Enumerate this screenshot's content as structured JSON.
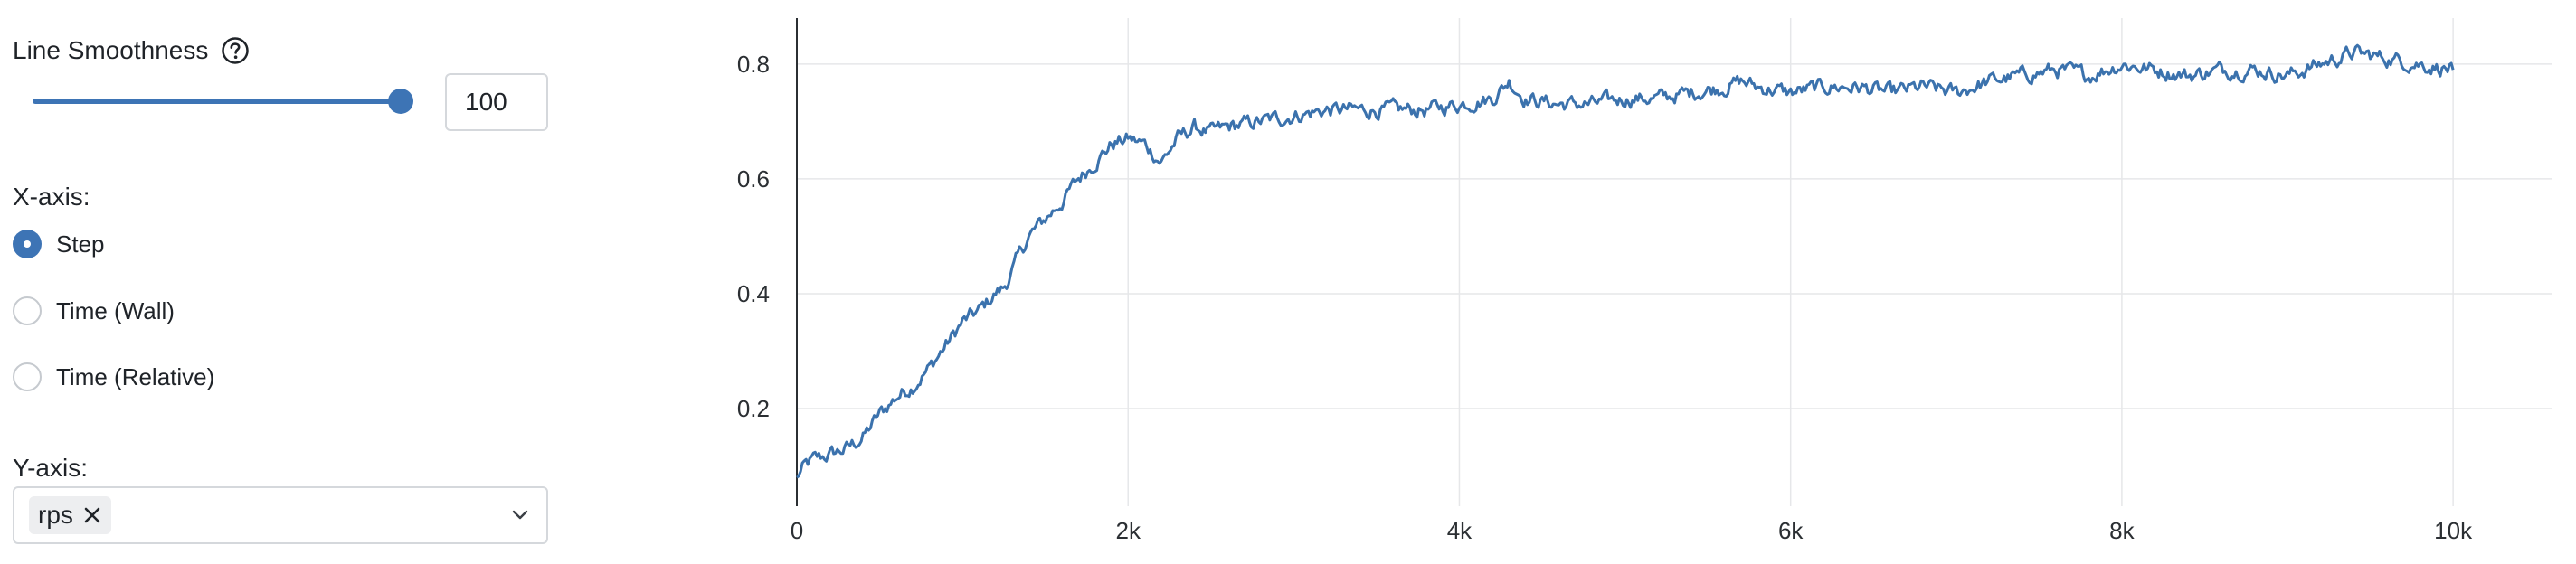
{
  "controls": {
    "smoothing": {
      "label": "Line Smoothness",
      "help_icon": "question-circle-icon",
      "value": "100",
      "slider_fraction": 1.0
    },
    "x_axis": {
      "label": "X-axis:",
      "options": [
        {
          "label": "Step",
          "selected": true
        },
        {
          "label": "Time (Wall)",
          "selected": false
        },
        {
          "label": "Time (Relative)",
          "selected": false
        }
      ]
    },
    "y_axis": {
      "label": "Y-axis:",
      "selected_chip": "rps",
      "remove_icon": "close-icon",
      "dropdown_icon": "chevron-down-icon"
    }
  },
  "colors": {
    "accent": "#3d74b5",
    "line": "#3b72ad",
    "grid": "#e6e7e9"
  },
  "chart_data": {
    "type": "line",
    "title": "",
    "xlabel": "",
    "ylabel": "",
    "xlim": [
      0,
      10600
    ],
    "ylim": [
      0.03,
      0.88
    ],
    "grid": true,
    "x_ticks": [
      0,
      2000,
      4000,
      6000,
      8000,
      10000
    ],
    "x_tick_labels": [
      "0",
      "2k",
      "4k",
      "6k",
      "8k",
      "10k"
    ],
    "y_ticks": [
      0.2,
      0.4,
      0.6,
      0.8
    ],
    "y_tick_labels": [
      "0.2",
      "0.4",
      "0.6",
      "0.8"
    ],
    "series": [
      {
        "x": [
          0,
          50,
          100,
          200,
          300,
          400,
          500,
          600,
          700,
          800,
          900,
          1000,
          1100,
          1200,
          1250,
          1300,
          1400,
          1500,
          1600,
          1700,
          1800,
          1900,
          2000,
          2100,
          2200,
          2300,
          2400,
          2500,
          2600,
          2800,
          3000,
          3200,
          3400,
          3600,
          3800,
          4000,
          4200,
          4300,
          4400,
          4600,
          4800,
          5000,
          5200,
          5400,
          5600,
          5700,
          5800,
          6000,
          6200,
          6400,
          6600,
          6800,
          7000,
          7200,
          7400,
          7600,
          7800,
          8000,
          8200,
          8400,
          8600,
          8800,
          9000,
          9200,
          9400,
          9600,
          9800,
          10000
        ],
        "values": [
          0.08,
          0.1,
          0.11,
          0.12,
          0.13,
          0.15,
          0.19,
          0.22,
          0.24,
          0.27,
          0.31,
          0.35,
          0.37,
          0.4,
          0.41,
          0.44,
          0.5,
          0.53,
          0.56,
          0.6,
          0.63,
          0.66,
          0.67,
          0.66,
          0.63,
          0.67,
          0.69,
          0.68,
          0.69,
          0.7,
          0.71,
          0.72,
          0.72,
          0.72,
          0.72,
          0.73,
          0.74,
          0.77,
          0.74,
          0.73,
          0.73,
          0.74,
          0.74,
          0.75,
          0.76,
          0.77,
          0.76,
          0.75,
          0.76,
          0.76,
          0.75,
          0.76,
          0.75,
          0.77,
          0.78,
          0.79,
          0.78,
          0.8,
          0.79,
          0.78,
          0.79,
          0.79,
          0.78,
          0.8,
          0.82,
          0.81,
          0.8,
          0.79
        ]
      }
    ]
  }
}
